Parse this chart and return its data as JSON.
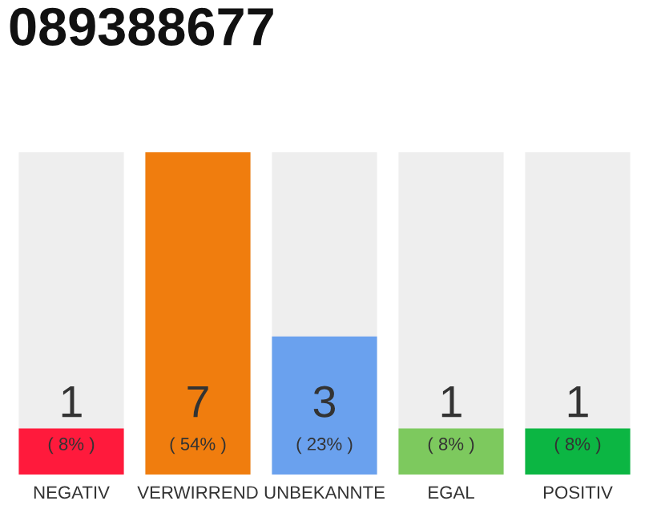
{
  "chart_data": {
    "type": "bar",
    "title": "089388677",
    "categories": [
      "NEGATIV",
      "VERWIRREND",
      "UNBEKANNTE",
      "EGAL",
      "POSITIV"
    ],
    "values": [
      1,
      7,
      3,
      1,
      1
    ],
    "colors": [
      "#ff1a3c",
      "#f07d0e",
      "#6aa1ee",
      "#7dc95e",
      "#0cb643"
    ],
    "value_labels": [
      "1",
      "7",
      "3",
      "1",
      "1"
    ],
    "annotations": [
      "( 8% )",
      "( 54% )",
      "( 23% )",
      "( 8% )",
      "( 8% )"
    ],
    "tick_labels": "x",
    "grid": false,
    "legend": false
  }
}
